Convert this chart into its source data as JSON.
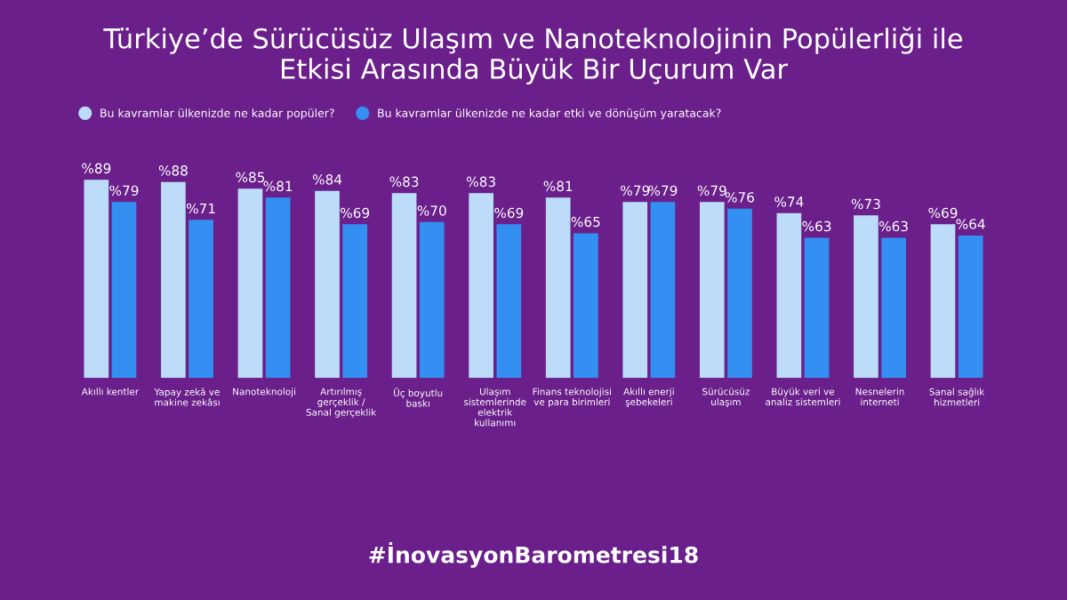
{
  "chart_data": {
    "type": "bar",
    "title": "Türkiye’de Sürücüsüz Ulaşım ve Nanoteknolojinin Popülerliği ile\nEtkisi Arasında Büyük Bir Uçurum Var",
    "categories": [
      "Akıllı kentler",
      "Yapay zekâ ve\nmakine zekâsı",
      "Nanoteknoloji",
      "Artırılmış\ngerçeklik /\nSanal gerçeklik",
      "Üç boyutlu\nbaskı",
      "Ulaşım\nsistemlerinde\nelektrik\nkullanımı",
      "Finans teknolojisi\nve para birimleri",
      "Akıllı enerji\nşebekeleri",
      "Sürücüsüz\nulaşım",
      "Büyük veri ve\nanaliz sistemleri",
      "Nesnelerin\ninterneti",
      "Sanal sağlık\nhizmetleri"
    ],
    "series": [
      {
        "name": "Bu kavramlar ülkenizde ne kadar popüler?",
        "color": "#bcdcfa",
        "values": [
          89,
          88,
          85,
          84,
          83,
          83,
          81,
          79,
          79,
          74,
          73,
          69
        ],
        "value_labels": [
          "%89",
          "%88",
          "%85",
          "%84",
          "%83",
          "%83",
          "%81",
          "%79",
          "%79",
          "%74",
          "%73",
          "%69"
        ]
      },
      {
        "name": "Bu kavramlar ülkenizde ne kadar etki ve dönüşüm yaratacak?",
        "color": "#3390f2",
        "values": [
          79,
          71,
          81,
          69,
          70,
          69,
          65,
          79,
          76,
          63,
          63,
          64
        ],
        "value_labels": [
          "%79",
          "%71",
          "%81",
          "%69",
          "%70",
          "%69",
          "%65",
          "%79",
          "%76",
          "%63",
          "%63",
          "%64"
        ]
      }
    ],
    "legend": "top left",
    "tick_labels": "x",
    "annotations": [
      "#İnovasyonBarometresi18"
    ]
  }
}
